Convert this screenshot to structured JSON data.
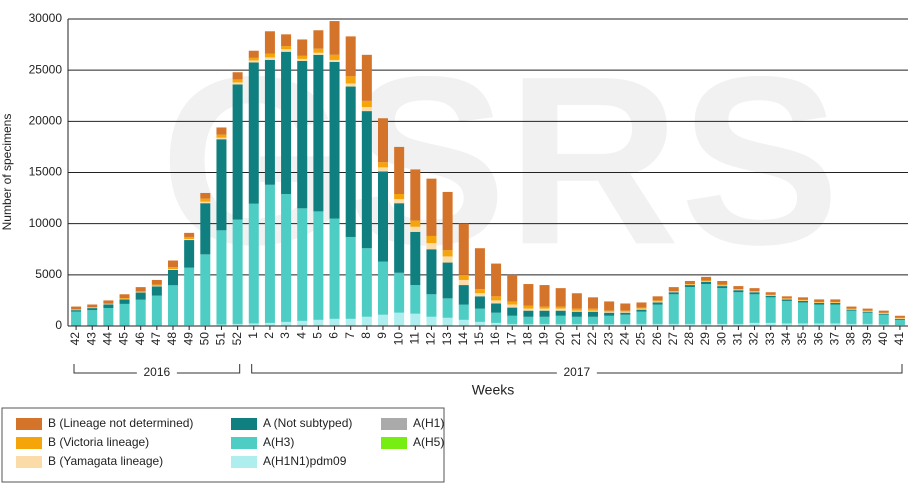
{
  "chart_data": {
    "type": "stacked-bar",
    "watermark": "GSRS",
    "y_label": "Number of specimens",
    "x_label": "Weeks",
    "categories": [
      "42",
      "43",
      "44",
      "45",
      "46",
      "47",
      "48",
      "49",
      "50",
      "51",
      "52",
      "1",
      "2",
      "3",
      "4",
      "5",
      "6",
      "7",
      "8",
      "9",
      "10",
      "11",
      "12",
      "13",
      "14",
      "15",
      "16",
      "17",
      "18",
      "19",
      "20",
      "21",
      "22",
      "23",
      "24",
      "25",
      "26",
      "27",
      "28",
      "29",
      "30",
      "31",
      "32",
      "33",
      "34",
      "35",
      "36",
      "37",
      "38",
      "39",
      "40",
      "41"
    ],
    "x_groups": [
      {
        "label": "2016",
        "from": "42",
        "to": "52"
      },
      {
        "label": "2017",
        "from": "1",
        "to": "41"
      }
    ],
    "ylim": [
      0,
      30000
    ],
    "yticks": [
      0,
      5000,
      10000,
      15000,
      20000,
      25000,
      30000
    ],
    "grid": true,
    "series": [
      {
        "name": "A(H1N1)pdm09",
        "color": "#aeeeee",
        "values": [
          50,
          50,
          60,
          60,
          70,
          70,
          80,
          100,
          100,
          150,
          200,
          250,
          300,
          400,
          500,
          600,
          700,
          700,
          900,
          1100,
          1300,
          1200,
          900,
          800,
          600,
          400,
          300,
          200,
          200,
          200,
          200,
          200,
          200,
          200,
          200,
          200,
          200,
          200,
          200,
          200,
          200,
          200,
          300,
          300,
          250,
          250,
          250,
          250,
          200,
          200,
          150,
          100
        ]
      },
      {
        "name": "A(H3)",
        "color": "#4ecdc4",
        "values": [
          1350,
          1500,
          1700,
          2100,
          2500,
          2900,
          3900,
          5600,
          6900,
          9200,
          10200,
          11700,
          13500,
          12500,
          11000,
          10600,
          9800,
          8000,
          6700,
          5200,
          3900,
          2800,
          2200,
          1900,
          1500,
          1300,
          1000,
          800,
          700,
          700,
          800,
          700,
          700,
          800,
          900,
          1200,
          1900,
          2900,
          3600,
          3900,
          3500,
          3100,
          2800,
          2500,
          2200,
          2050,
          1850,
          1850,
          1300,
          1100,
          950,
          500
        ]
      },
      {
        "name": "A(H1)",
        "color": "#aaaaaa",
        "values": [
          0,
          0,
          0,
          0,
          0,
          0,
          0,
          0,
          0,
          0,
          0,
          0,
          0,
          0,
          0,
          0,
          0,
          0,
          0,
          0,
          0,
          0,
          0,
          0,
          0,
          0,
          0,
          0,
          0,
          0,
          0,
          0,
          0,
          0,
          0,
          0,
          0,
          0,
          0,
          0,
          0,
          0,
          0,
          0,
          0,
          0,
          0,
          0,
          0,
          0,
          0,
          0
        ]
      },
      {
        "name": "A(H5)",
        "color": "#77ee11",
        "values": [
          0,
          0,
          0,
          0,
          0,
          0,
          0,
          0,
          0,
          0,
          0,
          0,
          0,
          0,
          0,
          0,
          0,
          0,
          0,
          0,
          0,
          0,
          0,
          0,
          0,
          0,
          0,
          0,
          0,
          0,
          0,
          0,
          0,
          0,
          0,
          0,
          0,
          0,
          0,
          0,
          0,
          0,
          0,
          0,
          0,
          0,
          0,
          0,
          0,
          0,
          0,
          0
        ]
      },
      {
        "name": "A (Not subtyped)",
        "color": "#0f7f7f",
        "values": [
          150,
          200,
          350,
          450,
          700,
          900,
          1500,
          2700,
          5000,
          8900,
          13200,
          13800,
          12200,
          13900,
          14400,
          15300,
          15300,
          14700,
          13400,
          8800,
          6800,
          5200,
          4400,
          3500,
          1900,
          1200,
          900,
          800,
          600,
          600,
          500,
          500,
          500,
          300,
          200,
          200,
          200,
          200,
          200,
          200,
          200,
          200,
          200,
          150,
          150,
          150,
          150,
          150,
          100,
          100,
          100,
          100
        ]
      },
      {
        "name": "B (Yamagata lineage)",
        "color": "#fbdca8",
        "values": [
          30,
          30,
          40,
          40,
          40,
          60,
          80,
          100,
          150,
          150,
          200,
          200,
          250,
          250,
          200,
          200,
          200,
          300,
          400,
          400,
          400,
          500,
          600,
          600,
          500,
          300,
          300,
          300,
          200,
          200,
          200,
          100,
          100,
          100,
          100,
          100,
          100,
          50,
          50,
          50,
          50,
          50,
          50,
          50,
          50,
          50,
          50,
          50,
          50,
          50,
          50,
          50
        ]
      },
      {
        "name": "B (Victoria lineage)",
        "color": "#f5a40a",
        "values": [
          50,
          60,
          60,
          80,
          100,
          120,
          200,
          200,
          300,
          300,
          300,
          250,
          350,
          300,
          300,
          400,
          500,
          700,
          600,
          500,
          500,
          600,
          700,
          600,
          500,
          400,
          400,
          300,
          300,
          200,
          200,
          200,
          200,
          100,
          100,
          100,
          100,
          50,
          50,
          100,
          100,
          50,
          50,
          50,
          50,
          50,
          50,
          50,
          50,
          50,
          50,
          50
        ]
      },
      {
        "name": "B (Lineage not determined)",
        "color": "#d4742a",
        "values": [
          270,
          260,
          290,
          370,
          390,
          450,
          640,
          400,
          550,
          700,
          700,
          700,
          2200,
          1150,
          1600,
          1800,
          3300,
          3900,
          4500,
          4300,
          4600,
          5000,
          5600,
          5700,
          5000,
          4000,
          3200,
          2600,
          2100,
          2100,
          1800,
          1500,
          1100,
          900,
          700,
          500,
          400,
          400,
          300,
          350,
          350,
          300,
          300,
          250,
          200,
          250,
          250,
          250,
          200,
          200,
          200,
          200
        ]
      }
    ]
  }
}
